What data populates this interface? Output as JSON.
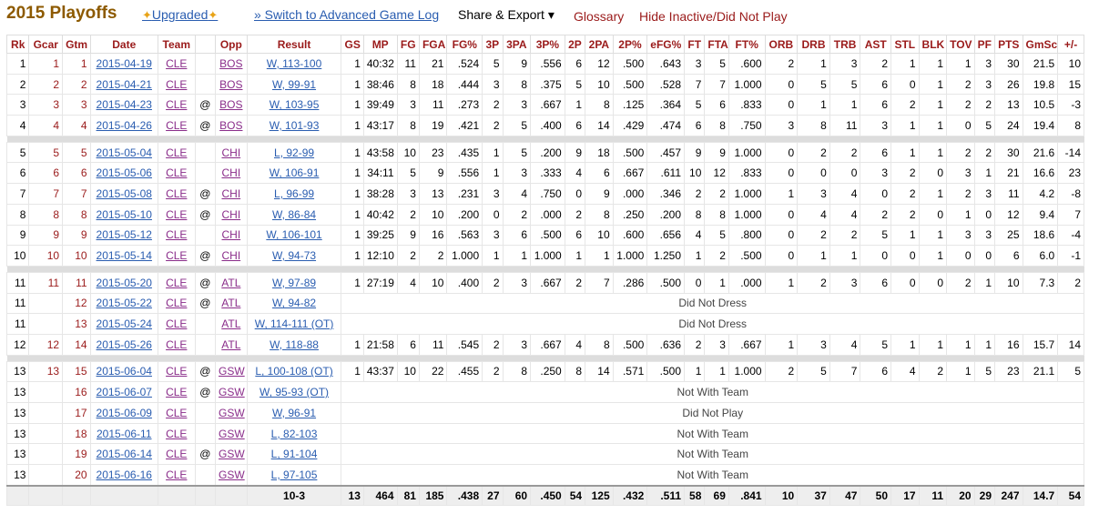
{
  "header": {
    "title": "2015 Playoffs",
    "upgraded": "Upgraded",
    "switch": "» Switch to Advanced Game Log",
    "share": "Share & Export ▾",
    "glossary": "Glossary",
    "hide": "Hide Inactive/Did Not Play"
  },
  "columns": [
    "Rk",
    "Gcar",
    "Gtm",
    "Date",
    "Team",
    "",
    "Opp",
    "Result",
    "GS",
    "MP",
    "FG",
    "FGA",
    "FG%",
    "3P",
    "3PA",
    "3P%",
    "2P",
    "2PA",
    "2P%",
    "eFG%",
    "FT",
    "FTA",
    "FT%",
    "ORB",
    "DRB",
    "TRB",
    "AST",
    "STL",
    "BLK",
    "TOV",
    "PF",
    "PTS",
    "GmSc",
    "+/-"
  ],
  "rows": [
    {
      "rk": "1",
      "gcar": "1",
      "gtm": "1",
      "date": "2015-04-19",
      "team": "CLE",
      "at": "",
      "opp": "BOS",
      "result": "W, 113-100",
      "stats": [
        "1",
        "40:32",
        "11",
        "21",
        ".524",
        "5",
        "9",
        ".556",
        "6",
        "12",
        ".500",
        ".643",
        "3",
        "5",
        ".600",
        "2",
        "1",
        "3",
        "2",
        "1",
        "1",
        "1",
        "3",
        "30",
        "21.5",
        "10"
      ]
    },
    {
      "rk": "2",
      "gcar": "2",
      "gtm": "2",
      "date": "2015-04-21",
      "team": "CLE",
      "at": "",
      "opp": "BOS",
      "result": "W, 99-91",
      "stats": [
        "1",
        "38:46",
        "8",
        "18",
        ".444",
        "3",
        "8",
        ".375",
        "5",
        "10",
        ".500",
        ".528",
        "7",
        "7",
        "1.000",
        "0",
        "5",
        "5",
        "6",
        "0",
        "1",
        "2",
        "3",
        "26",
        "19.8",
        "15"
      ]
    },
    {
      "rk": "3",
      "gcar": "3",
      "gtm": "3",
      "date": "2015-04-23",
      "team": "CLE",
      "at": "@",
      "opp": "BOS",
      "result": "W, 103-95",
      "stats": [
        "1",
        "39:49",
        "3",
        "11",
        ".273",
        "2",
        "3",
        ".667",
        "1",
        "8",
        ".125",
        ".364",
        "5",
        "6",
        ".833",
        "0",
        "1",
        "1",
        "6",
        "2",
        "1",
        "2",
        "2",
        "13",
        "10.5",
        "-3"
      ]
    },
    {
      "rk": "4",
      "gcar": "4",
      "gtm": "4",
      "date": "2015-04-26",
      "team": "CLE",
      "at": "@",
      "opp": "BOS",
      "result": "W, 101-93",
      "stats": [
        "1",
        "43:17",
        "8",
        "19",
        ".421",
        "2",
        "5",
        ".400",
        "6",
        "14",
        ".429",
        ".474",
        "6",
        "8",
        ".750",
        "3",
        "8",
        "11",
        "3",
        "1",
        "1",
        "0",
        "5",
        "24",
        "19.4",
        "8"
      ]
    },
    {
      "sep": true
    },
    {
      "rk": "5",
      "gcar": "5",
      "gtm": "5",
      "date": "2015-05-04",
      "team": "CLE",
      "at": "",
      "opp": "CHI",
      "result": "L, 92-99",
      "stats": [
        "1",
        "43:58",
        "10",
        "23",
        ".435",
        "1",
        "5",
        ".200",
        "9",
        "18",
        ".500",
        ".457",
        "9",
        "9",
        "1.000",
        "0",
        "2",
        "2",
        "6",
        "1",
        "1",
        "2",
        "2",
        "30",
        "21.6",
        "-14"
      ]
    },
    {
      "rk": "6",
      "gcar": "6",
      "gtm": "6",
      "date": "2015-05-06",
      "team": "CLE",
      "at": "",
      "opp": "CHI",
      "result": "W, 106-91",
      "stats": [
        "1",
        "34:11",
        "5",
        "9",
        ".556",
        "1",
        "3",
        ".333",
        "4",
        "6",
        ".667",
        ".611",
        "10",
        "12",
        ".833",
        "0",
        "0",
        "0",
        "3",
        "2",
        "0",
        "3",
        "1",
        "21",
        "16.6",
        "23"
      ]
    },
    {
      "rk": "7",
      "gcar": "7",
      "gtm": "7",
      "date": "2015-05-08",
      "team": "CLE",
      "at": "@",
      "opp": "CHI",
      "result": "L, 96-99",
      "stats": [
        "1",
        "38:28",
        "3",
        "13",
        ".231",
        "3",
        "4",
        ".750",
        "0",
        "9",
        ".000",
        ".346",
        "2",
        "2",
        "1.000",
        "1",
        "3",
        "4",
        "0",
        "2",
        "1",
        "2",
        "3",
        "11",
        "4.2",
        "-8"
      ]
    },
    {
      "rk": "8",
      "gcar": "8",
      "gtm": "8",
      "date": "2015-05-10",
      "team": "CLE",
      "at": "@",
      "opp": "CHI",
      "result": "W, 86-84",
      "stats": [
        "1",
        "40:42",
        "2",
        "10",
        ".200",
        "0",
        "2",
        ".000",
        "2",
        "8",
        ".250",
        ".200",
        "8",
        "8",
        "1.000",
        "0",
        "4",
        "4",
        "2",
        "2",
        "0",
        "1",
        "0",
        "12",
        "9.4",
        "7"
      ]
    },
    {
      "rk": "9",
      "gcar": "9",
      "gtm": "9",
      "date": "2015-05-12",
      "team": "CLE",
      "at": "",
      "opp": "CHI",
      "result": "W, 106-101",
      "stats": [
        "1",
        "39:25",
        "9",
        "16",
        ".563",
        "3",
        "6",
        ".500",
        "6",
        "10",
        ".600",
        ".656",
        "4",
        "5",
        ".800",
        "0",
        "2",
        "2",
        "5",
        "1",
        "1",
        "3",
        "3",
        "25",
        "18.6",
        "-4"
      ]
    },
    {
      "rk": "10",
      "gcar": "10",
      "gtm": "10",
      "date": "2015-05-14",
      "team": "CLE",
      "at": "@",
      "opp": "CHI",
      "result": "W, 94-73",
      "stats": [
        "1",
        "12:10",
        "2",
        "2",
        "1.000",
        "1",
        "1",
        "1.000",
        "1",
        "1",
        "1.000",
        "1.250",
        "1",
        "2",
        ".500",
        "0",
        "1",
        "1",
        "0",
        "0",
        "1",
        "0",
        "0",
        "6",
        "6.0",
        "-1"
      ]
    },
    {
      "sep": true
    },
    {
      "rk": "11",
      "gcar": "11",
      "gtm": "11",
      "date": "2015-05-20",
      "team": "CLE",
      "at": "@",
      "opp": "ATL",
      "result": "W, 97-89",
      "stats": [
        "1",
        "27:19",
        "4",
        "10",
        ".400",
        "2",
        "3",
        ".667",
        "2",
        "7",
        ".286",
        ".500",
        "0",
        "1",
        ".000",
        "1",
        "2",
        "3",
        "6",
        "0",
        "0",
        "2",
        "1",
        "10",
        "7.3",
        "2"
      ]
    },
    {
      "rk": "11",
      "gcar": "",
      "gtm": "12",
      "date": "2015-05-22",
      "team": "CLE",
      "at": "@",
      "opp": "ATL",
      "result": "W, 94-82",
      "note": "Did Not Dress"
    },
    {
      "rk": "11",
      "gcar": "",
      "gtm": "13",
      "date": "2015-05-24",
      "team": "CLE",
      "at": "",
      "opp": "ATL",
      "result": "W, 114-111 (OT)",
      "note": "Did Not Dress"
    },
    {
      "rk": "12",
      "gcar": "12",
      "gtm": "14",
      "date": "2015-05-26",
      "team": "CLE",
      "at": "",
      "opp": "ATL",
      "result": "W, 118-88",
      "stats": [
        "1",
        "21:58",
        "6",
        "11",
        ".545",
        "2",
        "3",
        ".667",
        "4",
        "8",
        ".500",
        ".636",
        "2",
        "3",
        ".667",
        "1",
        "3",
        "4",
        "5",
        "1",
        "1",
        "1",
        "1",
        "16",
        "15.7",
        "14"
      ]
    },
    {
      "sep": true
    },
    {
      "rk": "13",
      "gcar": "13",
      "gtm": "15",
      "date": "2015-06-04",
      "team": "CLE",
      "at": "@",
      "opp": "GSW",
      "result": "L, 100-108 (OT)",
      "stats": [
        "1",
        "43:37",
        "10",
        "22",
        ".455",
        "2",
        "8",
        ".250",
        "8",
        "14",
        ".571",
        ".500",
        "1",
        "1",
        "1.000",
        "2",
        "5",
        "7",
        "6",
        "4",
        "2",
        "1",
        "5",
        "23",
        "21.1",
        "5"
      ]
    },
    {
      "rk": "13",
      "gcar": "",
      "gtm": "16",
      "date": "2015-06-07",
      "team": "CLE",
      "at": "@",
      "opp": "GSW",
      "result": "W, 95-93 (OT)",
      "note": "Not With Team"
    },
    {
      "rk": "13",
      "gcar": "",
      "gtm": "17",
      "date": "2015-06-09",
      "team": "CLE",
      "at": "",
      "opp": "GSW",
      "result": "W, 96-91",
      "note": "Did Not Play"
    },
    {
      "rk": "13",
      "gcar": "",
      "gtm": "18",
      "date": "2015-06-11",
      "team": "CLE",
      "at": "",
      "opp": "GSW",
      "result": "L, 82-103",
      "note": "Not With Team"
    },
    {
      "rk": "13",
      "gcar": "",
      "gtm": "19",
      "date": "2015-06-14",
      "team": "CLE",
      "at": "@",
      "opp": "GSW",
      "result": "L, 91-104",
      "note": "Not With Team"
    },
    {
      "rk": "13",
      "gcar": "",
      "gtm": "20",
      "date": "2015-06-16",
      "team": "CLE",
      "at": "",
      "opp": "GSW",
      "result": "L, 97-105",
      "note": "Not With Team"
    }
  ],
  "totals": {
    "result": "10-3",
    "stats": [
      "13",
      "464",
      "81",
      "185",
      ".438",
      "27",
      "60",
      ".450",
      "54",
      "125",
      ".432",
      ".511",
      "58",
      "69",
      ".841",
      "10",
      "37",
      "47",
      "50",
      "17",
      "11",
      "20",
      "29",
      "247",
      "14.7",
      "54"
    ]
  }
}
